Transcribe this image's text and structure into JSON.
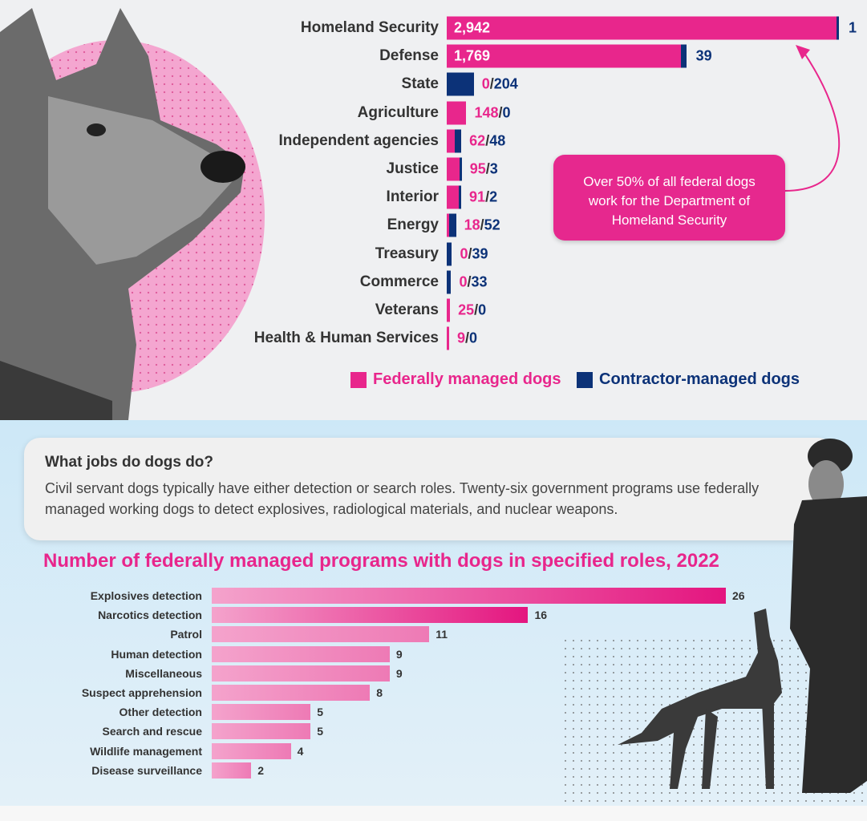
{
  "chart_data": [
    {
      "type": "bar",
      "orientation": "horizontal",
      "stacked": true,
      "categories": [
        "Homeland Security",
        "Defense",
        "State",
        "Agriculture",
        "Independent agencies",
        "Justice",
        "Interior",
        "Energy",
        "Treasury",
        "Commerce",
        "Veterans",
        "Health & Human Services"
      ],
      "series": [
        {
          "name": "Federally managed dogs",
          "color": "#e8268c",
          "values": [
            2942,
            1769,
            0,
            148,
            62,
            95,
            91,
            18,
            0,
            0,
            25,
            9
          ]
        },
        {
          "name": "Contractor-managed dogs",
          "color": "#0c3278",
          "values": [
            1,
            39,
            204,
            0,
            48,
            3,
            2,
            52,
            39,
            33,
            0,
            0
          ]
        }
      ],
      "data_labels": [
        "2,942|1",
        "1,769|39",
        "0/204",
        "148/0",
        "62/48",
        "95/3",
        "91/2",
        "18/52",
        "0/39",
        "0/33",
        "25/0",
        "9/0"
      ],
      "annotation": "Over 50% of all federal dogs work for the Department of Homeland Security",
      "legend": "bottom"
    },
    {
      "type": "bar",
      "orientation": "horizontal",
      "title": "Number of federally managed programs with dogs in specified roles, 2022",
      "categories": [
        "Explosives detection",
        "Narcotics detection",
        "Patrol",
        "Human detection",
        "Miscellaneous",
        "Suspect apprehension",
        "Other detection",
        "Search and rescue",
        "Wildlife management",
        "Disease surveillance"
      ],
      "values": [
        26,
        16,
        11,
        9,
        9,
        8,
        5,
        5,
        4,
        2
      ],
      "color": "#e8268c"
    }
  ],
  "info": {
    "heading": "What jobs do dogs do?",
    "body": "Civil servant dogs typically have either detection or search roles. Twenty-six government programs use federally managed working dogs to detect explosives, radiological materials, and nuclear weapons."
  }
}
